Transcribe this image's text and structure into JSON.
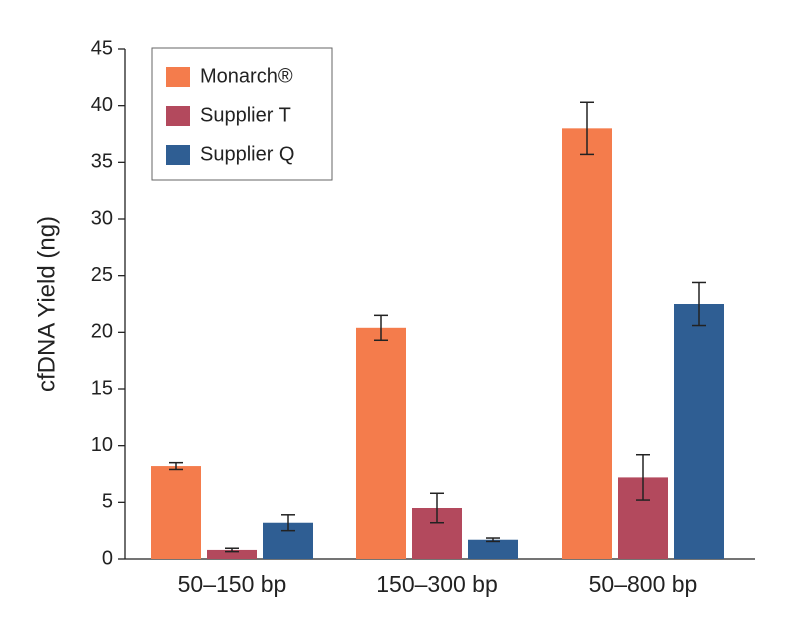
{
  "chart_data": {
    "type": "bar",
    "y_label": "cfDNA Yield (ng)",
    "categories": [
      "50–150 bp",
      "150–300 bp",
      "50–800 bp"
    ],
    "series": [
      {
        "name": "Monarch®",
        "color": "#f47c4c",
        "values": [
          8.2,
          20.4,
          38
        ],
        "errors": [
          0.3,
          1.1,
          2.3
        ]
      },
      {
        "name": "Supplier T",
        "color": "#b3495d",
        "values": [
          0.8,
          4.5,
          7.2
        ],
        "errors": [
          0.15,
          1.3,
          2
        ]
      },
      {
        "name": "Supplier Q",
        "color": "#2f5e93",
        "values": [
          3.2,
          1.7,
          22.5
        ],
        "errors": [
          0.7,
          0.15,
          1.9
        ]
      }
    ],
    "ylim": [
      0,
      45
    ],
    "yticks": [
      0,
      5,
      10,
      15,
      20,
      25,
      30,
      35,
      40,
      45
    ],
    "legend": "upper left",
    "grid": false
  }
}
